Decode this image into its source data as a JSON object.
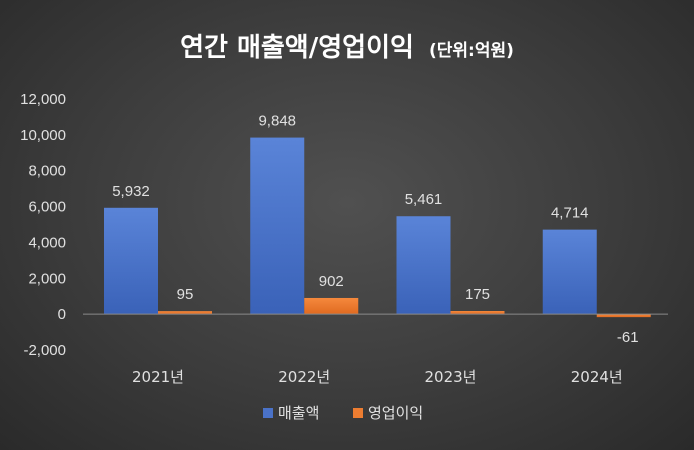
{
  "chart_data": {
    "type": "bar",
    "title": "연간 매출액/영업이익",
    "unit": "(단위:억원)",
    "categories": [
      "2021년",
      "2022년",
      "2023년",
      "2024년"
    ],
    "series": [
      {
        "name": "매출액",
        "values": [
          5932,
          9848,
          5461,
          4714
        ],
        "labels": [
          "5,932",
          "9,848",
          "5,461",
          "4,714"
        ],
        "color": "#4a72c8"
      },
      {
        "name": "영업이익",
        "values": [
          95,
          902,
          175,
          -61
        ],
        "labels": [
          "95",
          "902",
          "175",
          "-61"
        ],
        "color": "#ed7d31"
      }
    ],
    "ylim": [
      -2000,
      12000
    ],
    "yticks": [
      12000,
      10000,
      8000,
      6000,
      4000,
      2000,
      0,
      -2000
    ],
    "ytick_labels": [
      "12,000",
      "10,000",
      "8,000",
      "6,000",
      "4,000",
      "2,000",
      "0",
      "-2,000"
    ],
    "xlabel": "",
    "ylabel": "",
    "grid": false,
    "legend": "bottom"
  }
}
